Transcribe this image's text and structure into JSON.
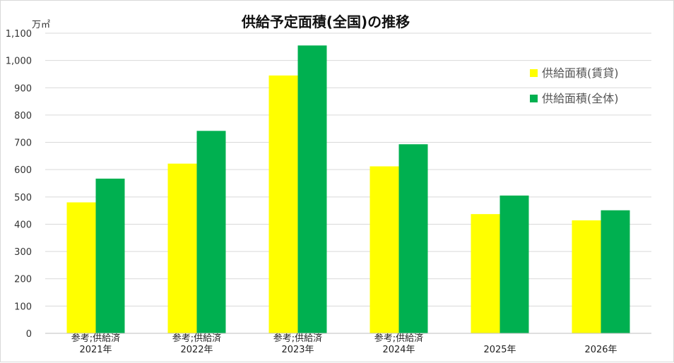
{
  "chart_data": {
    "type": "bar",
    "title": "供給予定面積(全国)の推移",
    "unit": "万㎡",
    "categories": [
      "2021年",
      "2022年",
      "2023年",
      "2024年",
      "2025年",
      "2026年"
    ],
    "category_notes": [
      "参考;供給済",
      "参考;供給済",
      "参考;供給済",
      "参考;供給済",
      "",
      ""
    ],
    "series": [
      {
        "name": "供給面積(賃貸)",
        "color": "#ffff00",
        "values": [
          480,
          622,
          945,
          612,
          437,
          414
        ]
      },
      {
        "name": "供給面積(全体)",
        "color": "#00b050",
        "values": [
          567,
          742,
          1055,
          693,
          505,
          451
        ]
      }
    ],
    "ylim": [
      0,
      1100
    ],
    "yticks": [
      "0",
      "100",
      "200",
      "300",
      "400",
      "500",
      "600",
      "700",
      "800",
      "900",
      "1,000",
      "1,100"
    ],
    "grid": true,
    "legend": "top-right"
  }
}
